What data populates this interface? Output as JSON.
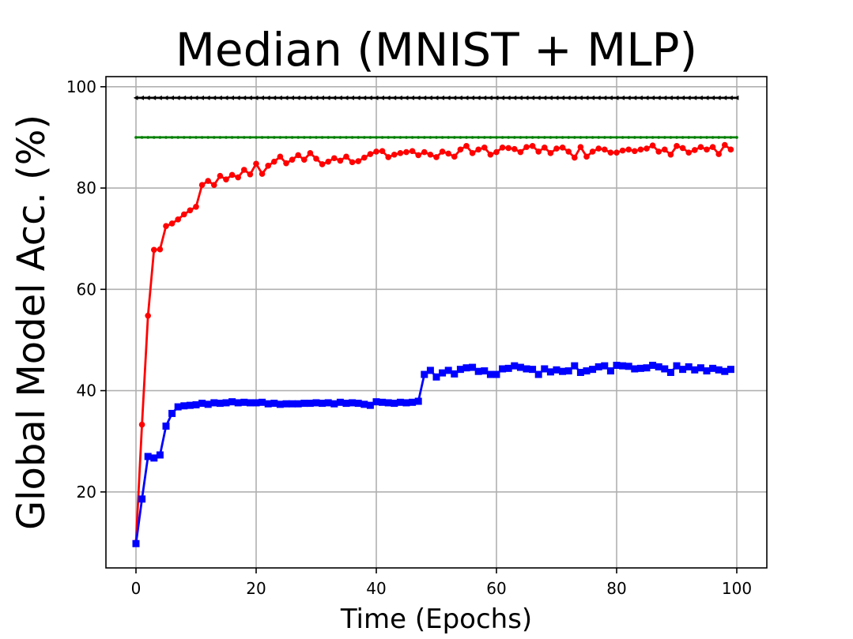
{
  "chart_data": {
    "type": "line",
    "title": "Median (MNIST + MLP)",
    "xlabel": "Time (Epochs)",
    "ylabel": "Global Model Acc. (%)",
    "xlim": [
      -5,
      105
    ],
    "ylim": [
      5,
      102
    ],
    "xticks": [
      0,
      20,
      40,
      60,
      80,
      100
    ],
    "yticks": [
      20,
      40,
      60,
      80,
      100
    ],
    "grid": true,
    "series": [
      {
        "color": "#000000",
        "marker": "triangle-left",
        "x": [
          0,
          100
        ],
        "values": [
          97.8,
          97.8
        ],
        "dense_markers": true
      },
      {
        "color": "#008000",
        "marker": "point",
        "x": [
          0,
          100
        ],
        "values": [
          90.0,
          90.0
        ],
        "dense_markers": true
      },
      {
        "color": "#ff0000",
        "marker": "circle",
        "x": [
          0,
          1,
          2,
          3,
          4,
          5,
          6,
          7,
          8,
          9,
          10,
          11,
          12,
          13,
          14,
          15,
          16,
          17,
          18,
          19,
          20,
          21,
          22,
          23,
          24,
          25,
          26,
          27,
          28,
          29,
          30,
          31,
          32,
          33,
          34,
          35,
          36,
          37,
          38,
          39,
          40,
          41,
          42,
          43,
          44,
          45,
          46,
          47,
          48,
          49,
          50,
          51,
          52,
          53,
          54,
          55,
          56,
          57,
          58,
          59,
          60,
          61,
          62,
          63,
          64,
          65,
          66,
          67,
          68,
          69,
          70,
          71,
          72,
          73,
          74,
          75,
          76,
          77,
          78,
          79,
          80,
          81,
          82,
          83,
          84,
          85,
          86,
          87,
          88,
          89,
          90,
          91,
          92,
          93,
          94,
          95,
          96,
          97,
          98,
          99
        ],
        "values": [
          10,
          33.3,
          54.8,
          67.8,
          67.9,
          72.5,
          73,
          73.8,
          74.8,
          75.6,
          76.3,
          80.6,
          81.4,
          80.6,
          82.4,
          81.7,
          82.6,
          82.1,
          83.6,
          82.7,
          84.8,
          82.8,
          84.4,
          85.2,
          86.2,
          84.9,
          85.6,
          86.5,
          85.6,
          86.9,
          85.8,
          84.7,
          85.2,
          85.9,
          85.4,
          86.2,
          85.1,
          85.3,
          86,
          86.7,
          87.2,
          87.3,
          86.1,
          86.6,
          86.9,
          87.1,
          87.3,
          86.5,
          87.1,
          86.6,
          86.1,
          87.2,
          86.8,
          86.2,
          87.6,
          88.3,
          86.9,
          87.6,
          88,
          86.6,
          87.1,
          88,
          87.9,
          87.7,
          87.1,
          88.1,
          88.3,
          87.2,
          88,
          86.9,
          87.8,
          88,
          87.2,
          86,
          88.1,
          86.2,
          87.2,
          87.8,
          87.6,
          87,
          87,
          87.4,
          87.6,
          87.3,
          87.6,
          87.8,
          88.4,
          87.2,
          87.6,
          86.6,
          88.3,
          87.9,
          87,
          87.5,
          88.1,
          87.6,
          88.1,
          86.7,
          88.5,
          87.6
        ]
      },
      {
        "color": "#0000ff",
        "marker": "square",
        "x": [
          0,
          1,
          2,
          3,
          4,
          5,
          6,
          7,
          8,
          9,
          10,
          11,
          12,
          13,
          14,
          15,
          16,
          17,
          18,
          19,
          20,
          21,
          22,
          23,
          24,
          25,
          26,
          27,
          28,
          29,
          30,
          31,
          32,
          33,
          34,
          35,
          36,
          37,
          38,
          39,
          40,
          41,
          42,
          43,
          44,
          45,
          46,
          47,
          48,
          49,
          50,
          51,
          52,
          53,
          54,
          55,
          56,
          57,
          58,
          59,
          60,
          61,
          62,
          63,
          64,
          65,
          66,
          67,
          68,
          69,
          70,
          71,
          72,
          73,
          74,
          75,
          76,
          77,
          78,
          79,
          80,
          81,
          82,
          83,
          84,
          85,
          86,
          87,
          88,
          89,
          90,
          91,
          92,
          93,
          94,
          95,
          96,
          97,
          98,
          99
        ],
        "values": [
          9.8,
          18.6,
          27,
          26.7,
          27.3,
          33,
          35.5,
          36.8,
          37,
          37.1,
          37.2,
          37.5,
          37.3,
          37.6,
          37.5,
          37.6,
          37.8,
          37.6,
          37.7,
          37.6,
          37.6,
          37.7,
          37.4,
          37.5,
          37.3,
          37.4,
          37.4,
          37.4,
          37.5,
          37.5,
          37.6,
          37.5,
          37.6,
          37.4,
          37.7,
          37.5,
          37.6,
          37.5,
          37.3,
          37.1,
          37.8,
          37.7,
          37.6,
          37.5,
          37.7,
          37.6,
          37.7,
          37.9,
          43.2,
          44,
          42.7,
          43.5,
          44,
          43.3,
          44.2,
          44.5,
          44.6,
          43.8,
          43.9,
          43.2,
          43.2,
          44.3,
          44.4,
          44.9,
          44.6,
          44.3,
          44.2,
          43.2,
          44.3,
          43.7,
          44.1,
          43.8,
          43.9,
          44.9,
          43.6,
          43.9,
          44.2,
          44.7,
          44.9,
          43.9,
          45,
          44.9,
          44.8,
          44.3,
          44.4,
          44.5,
          45,
          44.7,
          44.3,
          43.6,
          44.9,
          44.2,
          44.7,
          44.1,
          44.5,
          43.9,
          44.4,
          44.1,
          43.8,
          44.2
        ]
      }
    ]
  }
}
